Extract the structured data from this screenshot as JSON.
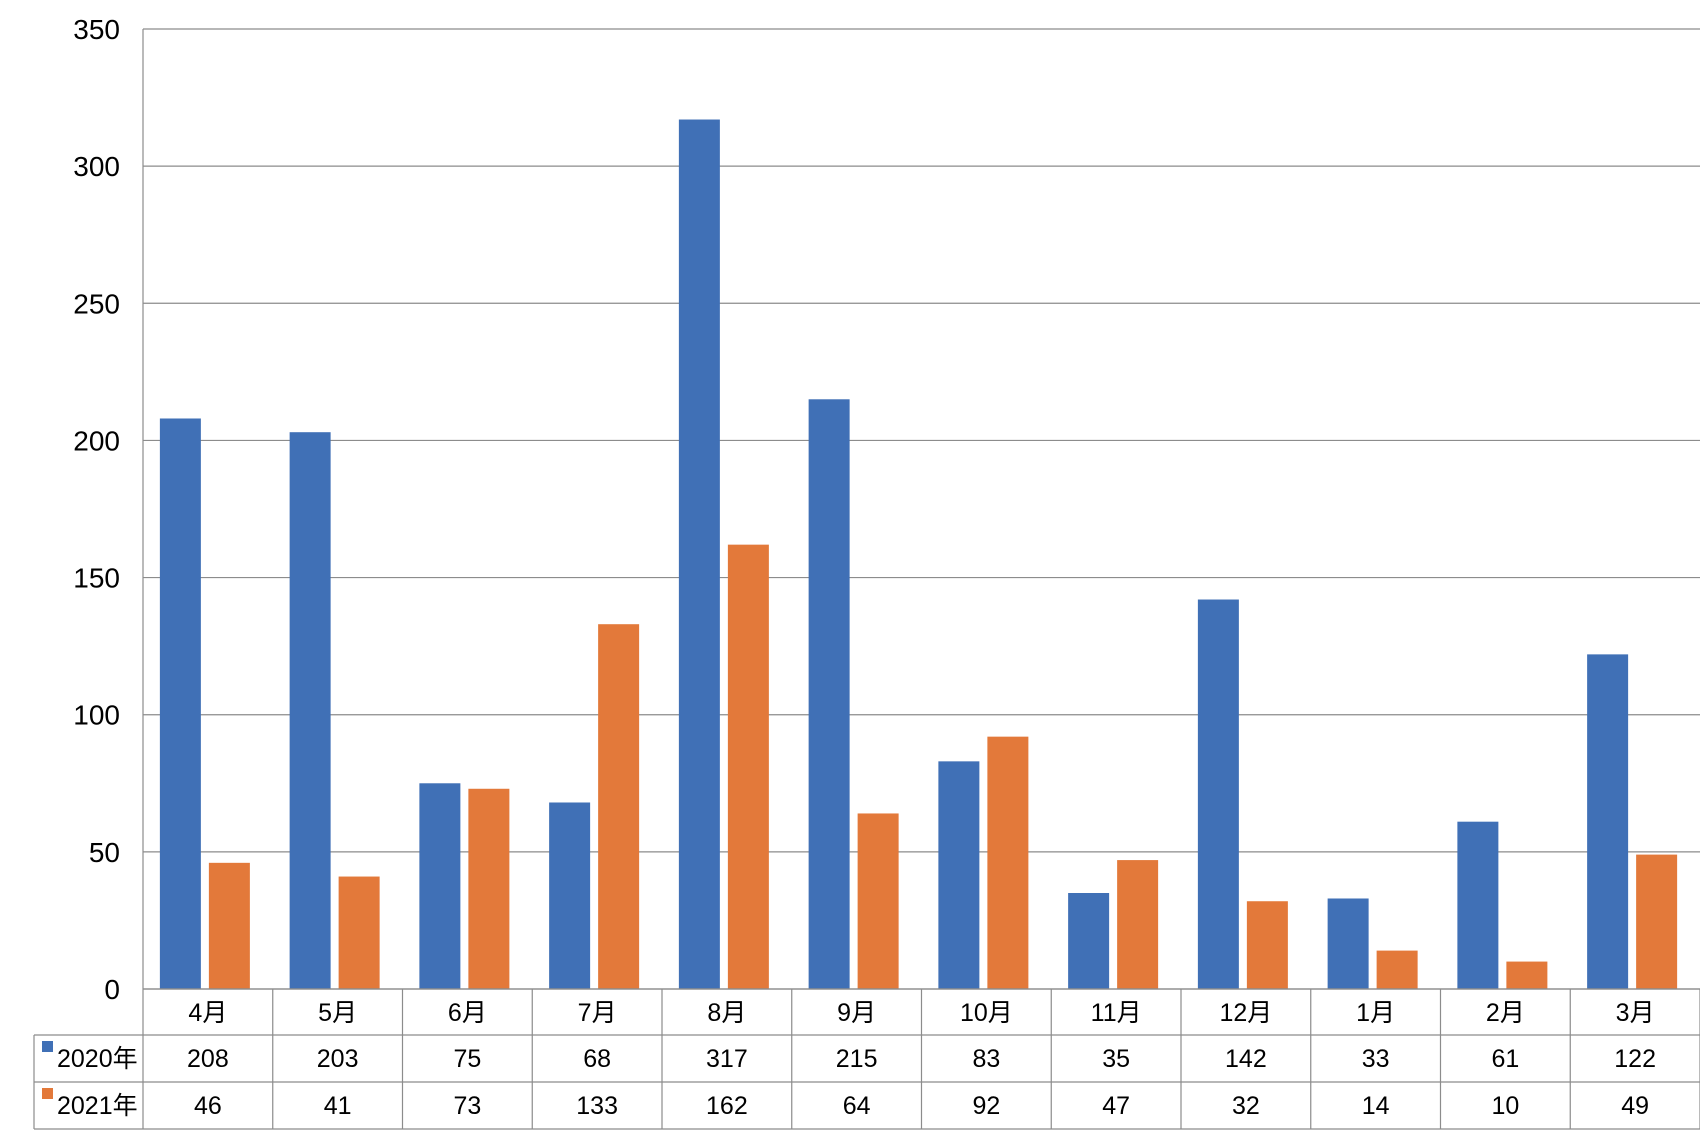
{
  "chart_data": {
    "type": "bar",
    "title": "",
    "xlabel": "",
    "ylabel": "",
    "categories": [
      "4月",
      "5月",
      "6月",
      "7月",
      "8月",
      "9月",
      "10月",
      "11月",
      "12月",
      "1月",
      "2月",
      "3月"
    ],
    "series": [
      {
        "name": "2020年",
        "color": "#4070B6",
        "values": [
          208,
          203,
          75,
          68,
          317,
          215,
          83,
          35,
          142,
          33,
          61,
          122
        ]
      },
      {
        "name": "2021年",
        "color": "#E3793A",
        "values": [
          46,
          41,
          73,
          133,
          162,
          64,
          92,
          47,
          32,
          14,
          10,
          49
        ]
      }
    ],
    "ylim": [
      0,
      350
    ],
    "yticks": [
      0,
      50,
      100,
      150,
      200,
      250,
      300,
      350
    ],
    "grid": true,
    "legend": "data-table-left",
    "data_table": true
  }
}
